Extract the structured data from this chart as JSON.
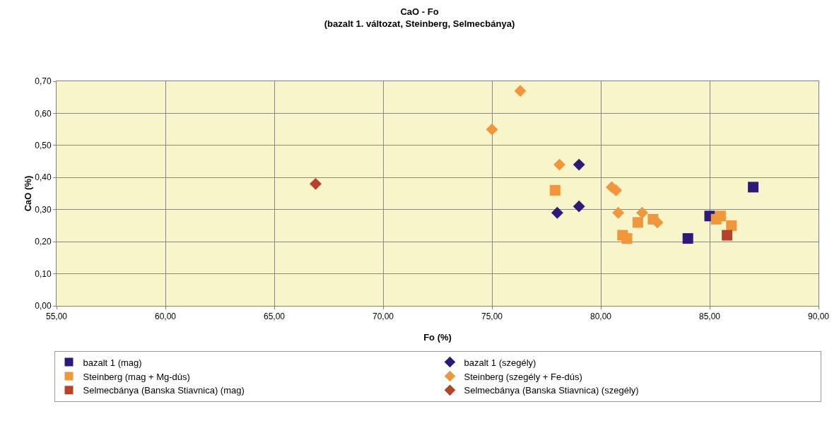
{
  "chart_data": {
    "type": "scatter",
    "title": "CaO - Fo",
    "subtitle": "(bazalt 1. változat, Steinberg, Selmecbánya)",
    "xlabel": "Fo (%)",
    "ylabel": "CaO (%)",
    "xlim": [
      55,
      90
    ],
    "xticks": [
      {
        "value": 55,
        "label": "55,00"
      },
      {
        "value": 60,
        "label": "60,00"
      },
      {
        "value": 65,
        "label": "65,00"
      },
      {
        "value": 70,
        "label": "70,00"
      },
      {
        "value": 75,
        "label": "75,00"
      },
      {
        "value": 80,
        "label": "80,00"
      },
      {
        "value": 85,
        "label": "85,00"
      },
      {
        "value": 90,
        "label": "90,00"
      }
    ],
    "ylim": [
      0,
      0.7
    ],
    "yticks": [
      {
        "value": 0,
        "label": "0,00"
      },
      {
        "value": 0.1,
        "label": "0,10"
      },
      {
        "value": 0.2,
        "label": "0,20"
      },
      {
        "value": 0.3,
        "label": "0,30"
      },
      {
        "value": 0.4,
        "label": "0,40"
      },
      {
        "value": 0.5,
        "label": "0,50"
      },
      {
        "value": 0.6,
        "label": "0,60"
      },
      {
        "value": 0.7,
        "label": "0,70"
      }
    ],
    "grid": true,
    "legend": "bottom",
    "series": [
      {
        "name": "bazalt 1 (mag)",
        "color": "#2b1a78",
        "marker": "square",
        "x": [
          84,
          85,
          87
        ],
        "values": [
          0.21,
          0.28,
          0.37
        ]
      },
      {
        "name": "bazalt 1 (szegély)",
        "color": "#2b1a78",
        "marker": "diamond",
        "x": [
          78,
          79,
          79
        ],
        "values": [
          0.29,
          0.31,
          0.44
        ]
      },
      {
        "name": "Steinberg (mag + Mg-dús)",
        "color": "#f0963c",
        "marker": "square",
        "x": [
          77.9,
          81.0,
          81.2,
          81.7,
          82.4,
          85.3,
          85.5,
          86.0
        ],
        "values": [
          0.36,
          0.22,
          0.21,
          0.26,
          0.27,
          0.27,
          0.28,
          0.25
        ]
      },
      {
        "name": "Steinberg (szegély + Fe-dús)",
        "color": "#f0963c",
        "marker": "diamond",
        "x": [
          75,
          76.3,
          78.1,
          80.5,
          80.7,
          80.8,
          81.9,
          82.6
        ],
        "values": [
          0.55,
          0.67,
          0.44,
          0.37,
          0.36,
          0.29,
          0.29,
          0.26
        ]
      },
      {
        "name": "Selmecbánya (Banska Stiavnica) (mag)",
        "color": "#b5432a",
        "marker": "square",
        "x": [
          85.8
        ],
        "values": [
          0.22
        ]
      },
      {
        "name": "Selmecbánya (Banska Stiavnica) (szegély)",
        "color": "#b5432a",
        "marker": "diamond",
        "x": [
          66.9
        ],
        "values": [
          0.38
        ]
      }
    ]
  }
}
